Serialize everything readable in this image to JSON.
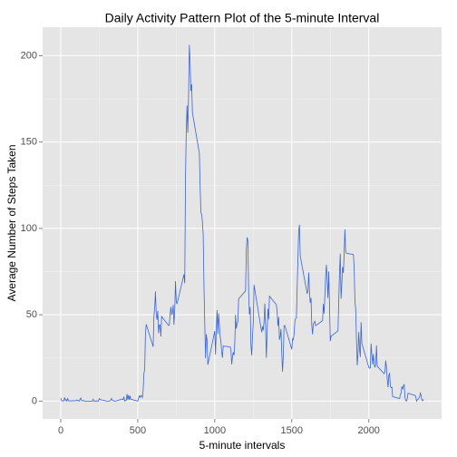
{
  "chart_data": {
    "type": "line",
    "title": "Daily Activity Pattern Plot of the 5-minute Interval",
    "x_label": "5-minute intervals",
    "y_label": "Average Number of Steps Taken",
    "x": [
      0,
      5,
      10,
      15,
      20,
      25,
      30,
      35,
      40,
      45,
      50,
      55,
      100,
      105,
      110,
      115,
      120,
      125,
      130,
      135,
      140,
      145,
      150,
      155,
      200,
      205,
      210,
      215,
      220,
      225,
      230,
      235,
      240,
      245,
      250,
      255,
      300,
      305,
      310,
      315,
      320,
      325,
      330,
      335,
      340,
      345,
      350,
      355,
      400,
      405,
      410,
      415,
      420,
      425,
      430,
      435,
      440,
      445,
      450,
      455,
      500,
      505,
      510,
      515,
      520,
      525,
      530,
      535,
      540,
      545,
      550,
      555,
      600,
      605,
      610,
      615,
      620,
      625,
      630,
      635,
      640,
      645,
      650,
      655,
      700,
      705,
      710,
      715,
      720,
      725,
      730,
      735,
      740,
      745,
      750,
      755,
      800,
      805,
      810,
      815,
      820,
      825,
      830,
      835,
      840,
      845,
      850,
      855,
      900,
      905,
      910,
      915,
      920,
      925,
      930,
      935,
      940,
      945,
      950,
      955,
      1000,
      1005,
      1010,
      1015,
      1020,
      1025,
      1030,
      1035,
      1040,
      1045,
      1050,
      1055,
      1100,
      1105,
      1110,
      1115,
      1120,
      1125,
      1130,
      1135,
      1140,
      1145,
      1150,
      1155,
      1200,
      1205,
      1210,
      1215,
      1220,
      1225,
      1230,
      1235,
      1240,
      1245,
      1250,
      1255,
      1300,
      1305,
      1310,
      1315,
      1320,
      1325,
      1330,
      1335,
      1340,
      1345,
      1350,
      1355,
      1400,
      1405,
      1410,
      1415,
      1420,
      1425,
      1430,
      1435,
      1440,
      1445,
      1450,
      1455,
      1500,
      1505,
      1510,
      1515,
      1520,
      1525,
      1530,
      1535,
      1540,
      1545,
      1550,
      1555,
      1600,
      1605,
      1610,
      1615,
      1620,
      1625,
      1630,
      1635,
      1640,
      1645,
      1650,
      1655,
      1700,
      1705,
      1710,
      1715,
      1720,
      1725,
      1730,
      1735,
      1740,
      1745,
      1750,
      1755,
      1800,
      1805,
      1810,
      1815,
      1820,
      1825,
      1830,
      1835,
      1840,
      1845,
      1850,
      1855,
      1900,
      1905,
      1910,
      1915,
      1920,
      1925,
      1930,
      1935,
      1940,
      1945,
      1950,
      1955,
      2000,
      2005,
      2010,
      2015,
      2020,
      2025,
      2030,
      2035,
      2040,
      2045,
      2050,
      2055,
      2100,
      2105,
      2110,
      2115,
      2120,
      2125,
      2130,
      2135,
      2140,
      2145,
      2150,
      2155,
      2200,
      2205,
      2210,
      2215,
      2220,
      2225,
      2230,
      2235,
      2240,
      2245,
      2250,
      2255,
      2300,
      2305,
      2310,
      2315,
      2320,
      2325,
      2330,
      2335,
      2340,
      2345,
      2350,
      2355
    ],
    "series": [
      {
        "name": "steps",
        "color": "#3a64d6",
        "values": [
          1.7,
          0.3,
          0.1,
          0.2,
          0.1,
          2.1,
          0.5,
          0.9,
          0,
          1.5,
          0.3,
          0.1,
          0.3,
          0.7,
          0.2,
          0.3,
          0,
          1.1,
          1.8,
          0.2,
          0.2,
          0.4,
          0.3,
          0,
          0,
          0,
          1.1,
          0,
          0,
          0.1,
          0,
          0.2,
          0,
          0,
          1.5,
          0.9,
          0,
          0,
          0,
          0,
          0.2,
          0.6,
          1.6,
          0.6,
          0.5,
          0.1,
          0,
          0,
          1.2,
          0.9,
          2.6,
          0,
          0.3,
          0.4,
          4.1,
          0.7,
          3.5,
          0.8,
          3.1,
          1.1,
          0,
          1.6,
          3,
          2.2,
          3.3,
          3,
          2.1,
          6.1,
          16,
          18.3,
          39.5,
          44.5,
          31.5,
          49.3,
          53.8,
          63.5,
          50,
          47.1,
          52.2,
          39.3,
          44,
          44.2,
          37.4,
          49,
          43.8,
          44.4,
          50.5,
          54.5,
          49.9,
          51,
          55.7,
          44.3,
          52.3,
          69.5,
          57.8,
          56.2,
          73.4,
          68.2,
          129.4,
          157.5,
          171.2,
          155.4,
          177.3,
          206.2,
          195.9,
          179.6,
          183.4,
          167,
          143.5,
          124,
          109.1,
          108.1,
          103.7,
          96,
          66.2,
          45.2,
          24.8,
          38.8,
          35,
          21.1,
          40.6,
          27,
          42.4,
          52.7,
          38.9,
          50.8,
          44.3,
          37.4,
          34.7,
          28.3,
          25.1,
          31.9,
          31.4,
          29.7,
          21.3,
          25.5,
          28.4,
          26.5,
          33.4,
          50,
          42,
          44.6,
          46,
          59.2,
          63.9,
          87.7,
          94.8,
          92.8,
          63.4,
          50.2,
          54.5,
          32.4,
          26.5,
          37.7,
          45.1,
          67.3,
          42.3,
          39.9,
          43.3,
          41,
          46.2,
          56.4,
          42.8,
          25.1,
          40,
          53.5,
          47.3,
          60.8,
          55.8,
          52,
          43.6,
          48.7,
          35.5,
          37.5,
          41.8,
          27.5,
          17.1,
          26.1,
          43.6,
          43.8,
          30,
          36.1,
          35.5,
          38.8,
          46,
          47.8,
          48.1,
          65.3,
          82.9,
          98.7,
          102.1,
          84,
          62.1,
          64.1,
          74.5,
          63.2,
          56.9,
          59.8,
          43.9,
          38.6,
          44.7,
          45.5,
          46.2,
          43.7,
          46.6,
          56.3,
          50.7,
          61.2,
          72.7,
          78.9,
          68.9,
          59.7,
          75.1,
          56.5,
          34.8,
          37.5,
          40.7,
          58,
          74.7,
          85.3,
          59.3,
          67.8,
          77.7,
          74.2,
          85.3,
          99.5,
          86.6,
          85.6,
          84.9,
          77.8,
          58,
          53.4,
          36.3,
          20.7,
          27.4,
          40,
          30.2,
          25.5,
          45.7,
          33.5,
          19.6,
          19,
          19.3,
          33.3,
          26.8,
          21.2,
          27.3,
          21.3,
          19.5,
          21.3,
          32.3,
          20.2,
          15.9,
          17.2,
          23.5,
          19.2,
          12.5,
          8,
          14.7,
          16.3,
          8.7,
          7.8,
          8.1,
          2.6,
          1.5,
          3.7,
          4.8,
          8.5,
          7.1,
          8.7,
          9.8,
          2.2,
          0.3,
          0.1,
          1.6,
          4.6,
          3.3,
          2.8,
          0,
          0.8,
          1,
          1.6,
          2.6,
          4.7,
          3.3,
          0.6,
          0.2,
          1.1
        ]
      }
    ],
    "xlim": [
      -117.75,
      2472.75
    ],
    "ylim": [
      -10.3,
      216.5
    ],
    "xticks": [
      0,
      500,
      1000,
      1500,
      2000
    ],
    "yticks": [
      0,
      50,
      100,
      150,
      200
    ],
    "grid": true
  }
}
